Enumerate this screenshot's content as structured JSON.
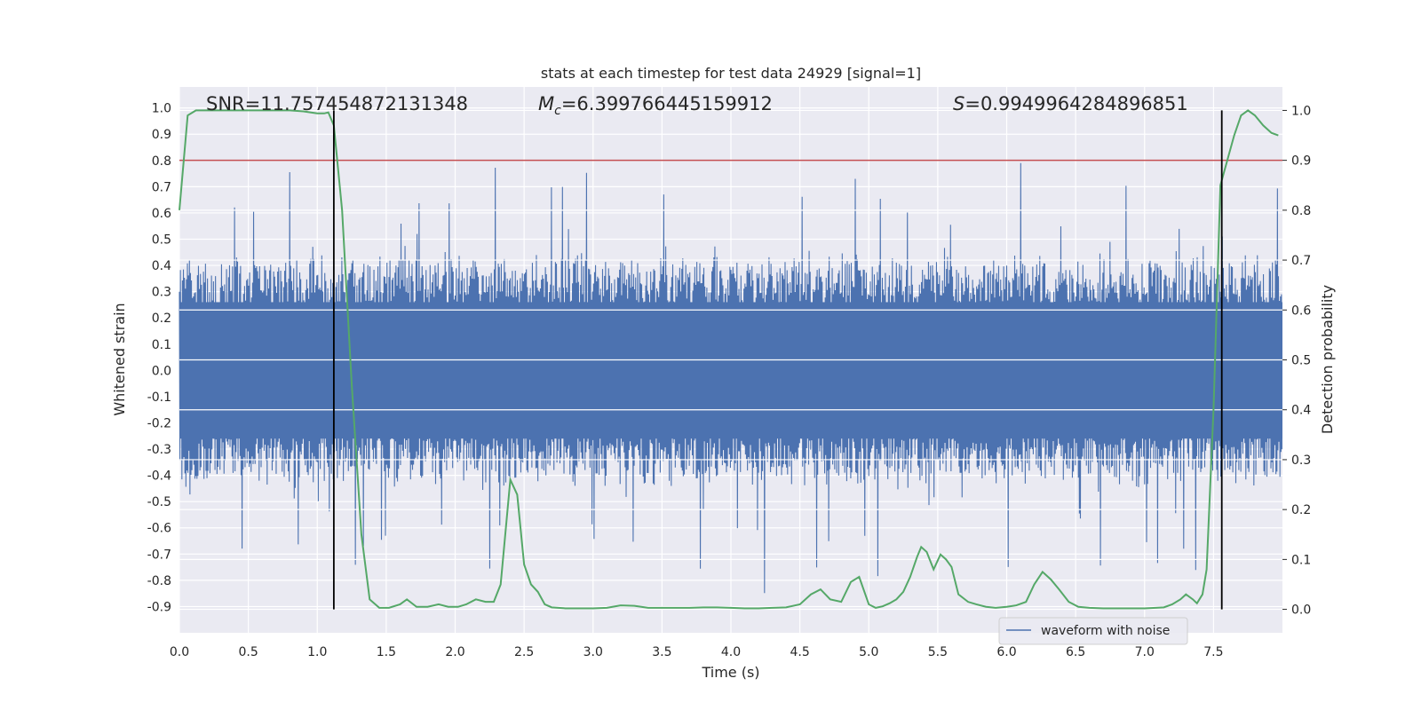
{
  "chart_data": {
    "type": "line",
    "title": "stats at each timestep for test data 24929 [signal=1]",
    "xlabel": "Time (s)",
    "ylabel": "Whitened strain",
    "y2label": "Detection probability",
    "xlim": [
      0,
      8
    ],
    "ylim": [
      -1.0,
      1.08
    ],
    "y2lim": [
      -0.047,
      1.047
    ],
    "xticks": [
      "0.0",
      "0.5",
      "1.0",
      "1.5",
      "2.0",
      "2.5",
      "3.0",
      "3.5",
      "4.0",
      "4.5",
      "5.0",
      "5.5",
      "6.0",
      "6.5",
      "7.0",
      "7.5"
    ],
    "yticks": [
      "1.0",
      "0.9",
      "0.8",
      "0.7",
      "0.6",
      "0.5",
      "0.4",
      "0.3",
      "0.2",
      "0.1",
      "0.0",
      "-0.1",
      "-0.2",
      "-0.3",
      "-0.4",
      "-0.5",
      "-0.6",
      "-0.7",
      "-0.8",
      "-0.9"
    ],
    "y2ticks": [
      "1.0",
      "0.9",
      "0.8",
      "0.7",
      "0.6",
      "0.5",
      "0.4",
      "0.3",
      "0.2",
      "0.1",
      "0.0"
    ],
    "grid": true,
    "legend_position": "lower-right",
    "annotations": {
      "snr": "SNR=11.757454872131348",
      "mc_symbol": "M",
      "mc_sub": "c",
      "mc_value": "=6.399766445159912",
      "s_symbol": "S",
      "s_value": "=0.9949964284896851"
    },
    "threshold_prob": 0.9,
    "vertical_markers_s": [
      1.12,
      7.56
    ],
    "series": [
      {
        "name": "waveform with noise",
        "color": "#4c72b0",
        "axis": "left",
        "description_level": {
          "core_band": 0.26,
          "typical_peak": 0.45,
          "max_peak": 0.86,
          "min_trough": -0.88
        }
      },
      {
        "name": "",
        "color": "#55a868",
        "axis": "right",
        "x": [
          0.0,
          0.06,
          0.12,
          0.2,
          0.3,
          0.4,
          0.5,
          0.6,
          0.7,
          0.8,
          0.9,
          1.0,
          1.05,
          1.08,
          1.12,
          1.18,
          1.25,
          1.32,
          1.38,
          1.45,
          1.52,
          1.6,
          1.65,
          1.72,
          1.8,
          1.88,
          1.95,
          2.02,
          2.08,
          2.15,
          2.22,
          2.28,
          2.33,
          2.36,
          2.4,
          2.45,
          2.5,
          2.55,
          2.6,
          2.65,
          2.7,
          2.8,
          2.9,
          3.0,
          3.1,
          3.2,
          3.3,
          3.4,
          3.5,
          3.6,
          3.7,
          3.8,
          3.9,
          4.0,
          4.1,
          4.2,
          4.3,
          4.4,
          4.5,
          4.58,
          4.65,
          4.72,
          4.8,
          4.87,
          4.93,
          5.0,
          5.05,
          5.1,
          5.15,
          5.2,
          5.25,
          5.3,
          5.35,
          5.38,
          5.42,
          5.47,
          5.52,
          5.56,
          5.6,
          5.65,
          5.72,
          5.78,
          5.85,
          5.92,
          6.0,
          6.07,
          6.14,
          6.2,
          6.26,
          6.32,
          6.38,
          6.45,
          6.52,
          6.6,
          6.7,
          6.8,
          6.9,
          7.0,
          7.08,
          7.14,
          7.2,
          7.26,
          7.3,
          7.35,
          7.38,
          7.42,
          7.45,
          7.5,
          7.55,
          7.6,
          7.65,
          7.7,
          7.75,
          7.8,
          7.86,
          7.92,
          7.97
        ],
        "y": [
          0.8,
          0.99,
          1.0,
          1.0,
          1.0,
          1.0,
          1.0,
          1.0,
          1.0,
          1.0,
          0.998,
          0.994,
          0.994,
          0.996,
          0.97,
          0.8,
          0.45,
          0.15,
          0.02,
          0.003,
          0.003,
          0.01,
          0.02,
          0.005,
          0.005,
          0.01,
          0.005,
          0.005,
          0.01,
          0.02,
          0.015,
          0.015,
          0.05,
          0.14,
          0.26,
          0.23,
          0.09,
          0.05,
          0.035,
          0.01,
          0.004,
          0.002,
          0.002,
          0.002,
          0.003,
          0.008,
          0.007,
          0.003,
          0.003,
          0.003,
          0.003,
          0.004,
          0.004,
          0.003,
          0.002,
          0.002,
          0.003,
          0.004,
          0.01,
          0.03,
          0.04,
          0.02,
          0.015,
          0.055,
          0.065,
          0.01,
          0.003,
          0.006,
          0.012,
          0.02,
          0.035,
          0.065,
          0.105,
          0.125,
          0.115,
          0.08,
          0.11,
          0.1,
          0.085,
          0.03,
          0.015,
          0.01,
          0.005,
          0.003,
          0.005,
          0.008,
          0.015,
          0.05,
          0.075,
          0.06,
          0.04,
          0.015,
          0.005,
          0.003,
          0.002,
          0.002,
          0.002,
          0.002,
          0.003,
          0.004,
          0.01,
          0.02,
          0.03,
          0.02,
          0.012,
          0.03,
          0.08,
          0.4,
          0.85,
          0.9,
          0.95,
          0.99,
          1.0,
          0.99,
          0.97,
          0.955,
          0.95
        ]
      }
    ]
  }
}
